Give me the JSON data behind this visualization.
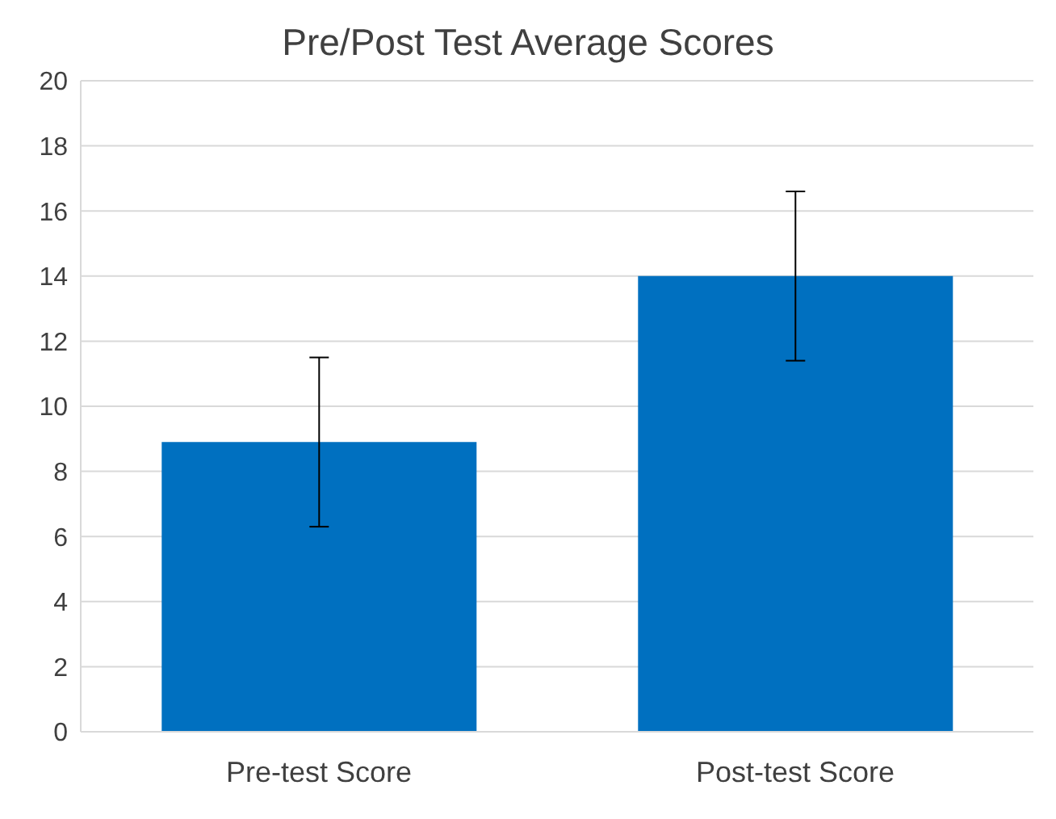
{
  "chart_data": {
    "type": "bar",
    "title": "Pre/Post Test Average Scores",
    "categories": [
      "Pre-test Score",
      "Post-test Score"
    ],
    "values": [
      8.9,
      14.0
    ],
    "errors": [
      2.6,
      2.6
    ],
    "color": "#0070c0",
    "ylim": [
      0,
      20
    ],
    "yticks": [
      0,
      2,
      4,
      6,
      8,
      10,
      12,
      14,
      16,
      18,
      20
    ],
    "grid": "y"
  }
}
